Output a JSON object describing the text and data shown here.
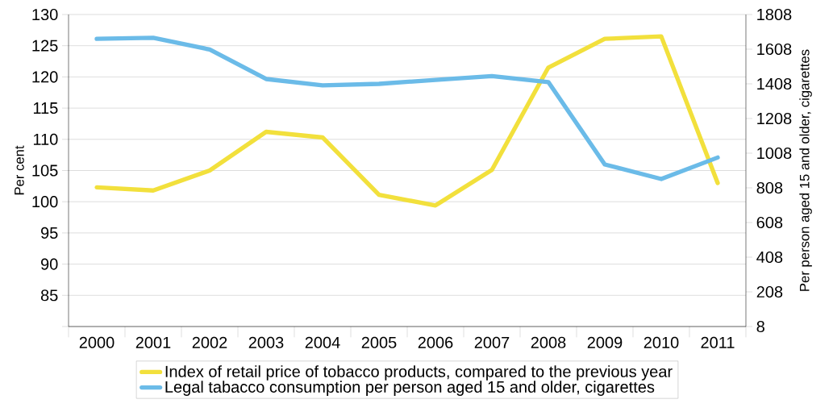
{
  "chart_data": {
    "type": "line",
    "ylabel": "Per cent",
    "y2label": "Per person aged 15 and older, cigarettes",
    "categories": [
      "2000",
      "2001",
      "2002",
      "2003",
      "2004",
      "2005",
      "2006",
      "2007",
      "2008",
      "2009",
      "2010",
      "2011"
    ],
    "series": [
      {
        "name": "Index of retail price of tobacco products, compared to the previous year",
        "color": "#f2e03c",
        "values": [
          102.3,
          101.8,
          105.0,
          111.2,
          110.3,
          101.1,
          99.4,
          105.1,
          121.5,
          126.1,
          126.5,
          103.0
        ]
      },
      {
        "name": "Legal tabacco consumption per person aged 15 and older, cigarettes",
        "color": "#6bbbe8",
        "axis": "y2",
        "values": [
          1668,
          1674,
          1606,
          1436,
          1399,
          1408,
          1431,
          1453,
          1418,
          943,
          859,
          983
        ]
      }
    ],
    "ylim": [
      80,
      130
    ],
    "yticks": [
      {
        "value": 80,
        "label": null
      },
      85,
      90,
      95,
      100,
      105,
      110,
      115,
      120,
      125,
      130
    ],
    "y2lim": [
      8,
      1808
    ],
    "y2ticks": [
      8,
      208,
      408,
      608,
      808,
      1008,
      1208,
      1408,
      1608,
      1808
    ],
    "grid": "y",
    "legend": "bottom",
    "line_style": "solid",
    "marker": "none"
  }
}
